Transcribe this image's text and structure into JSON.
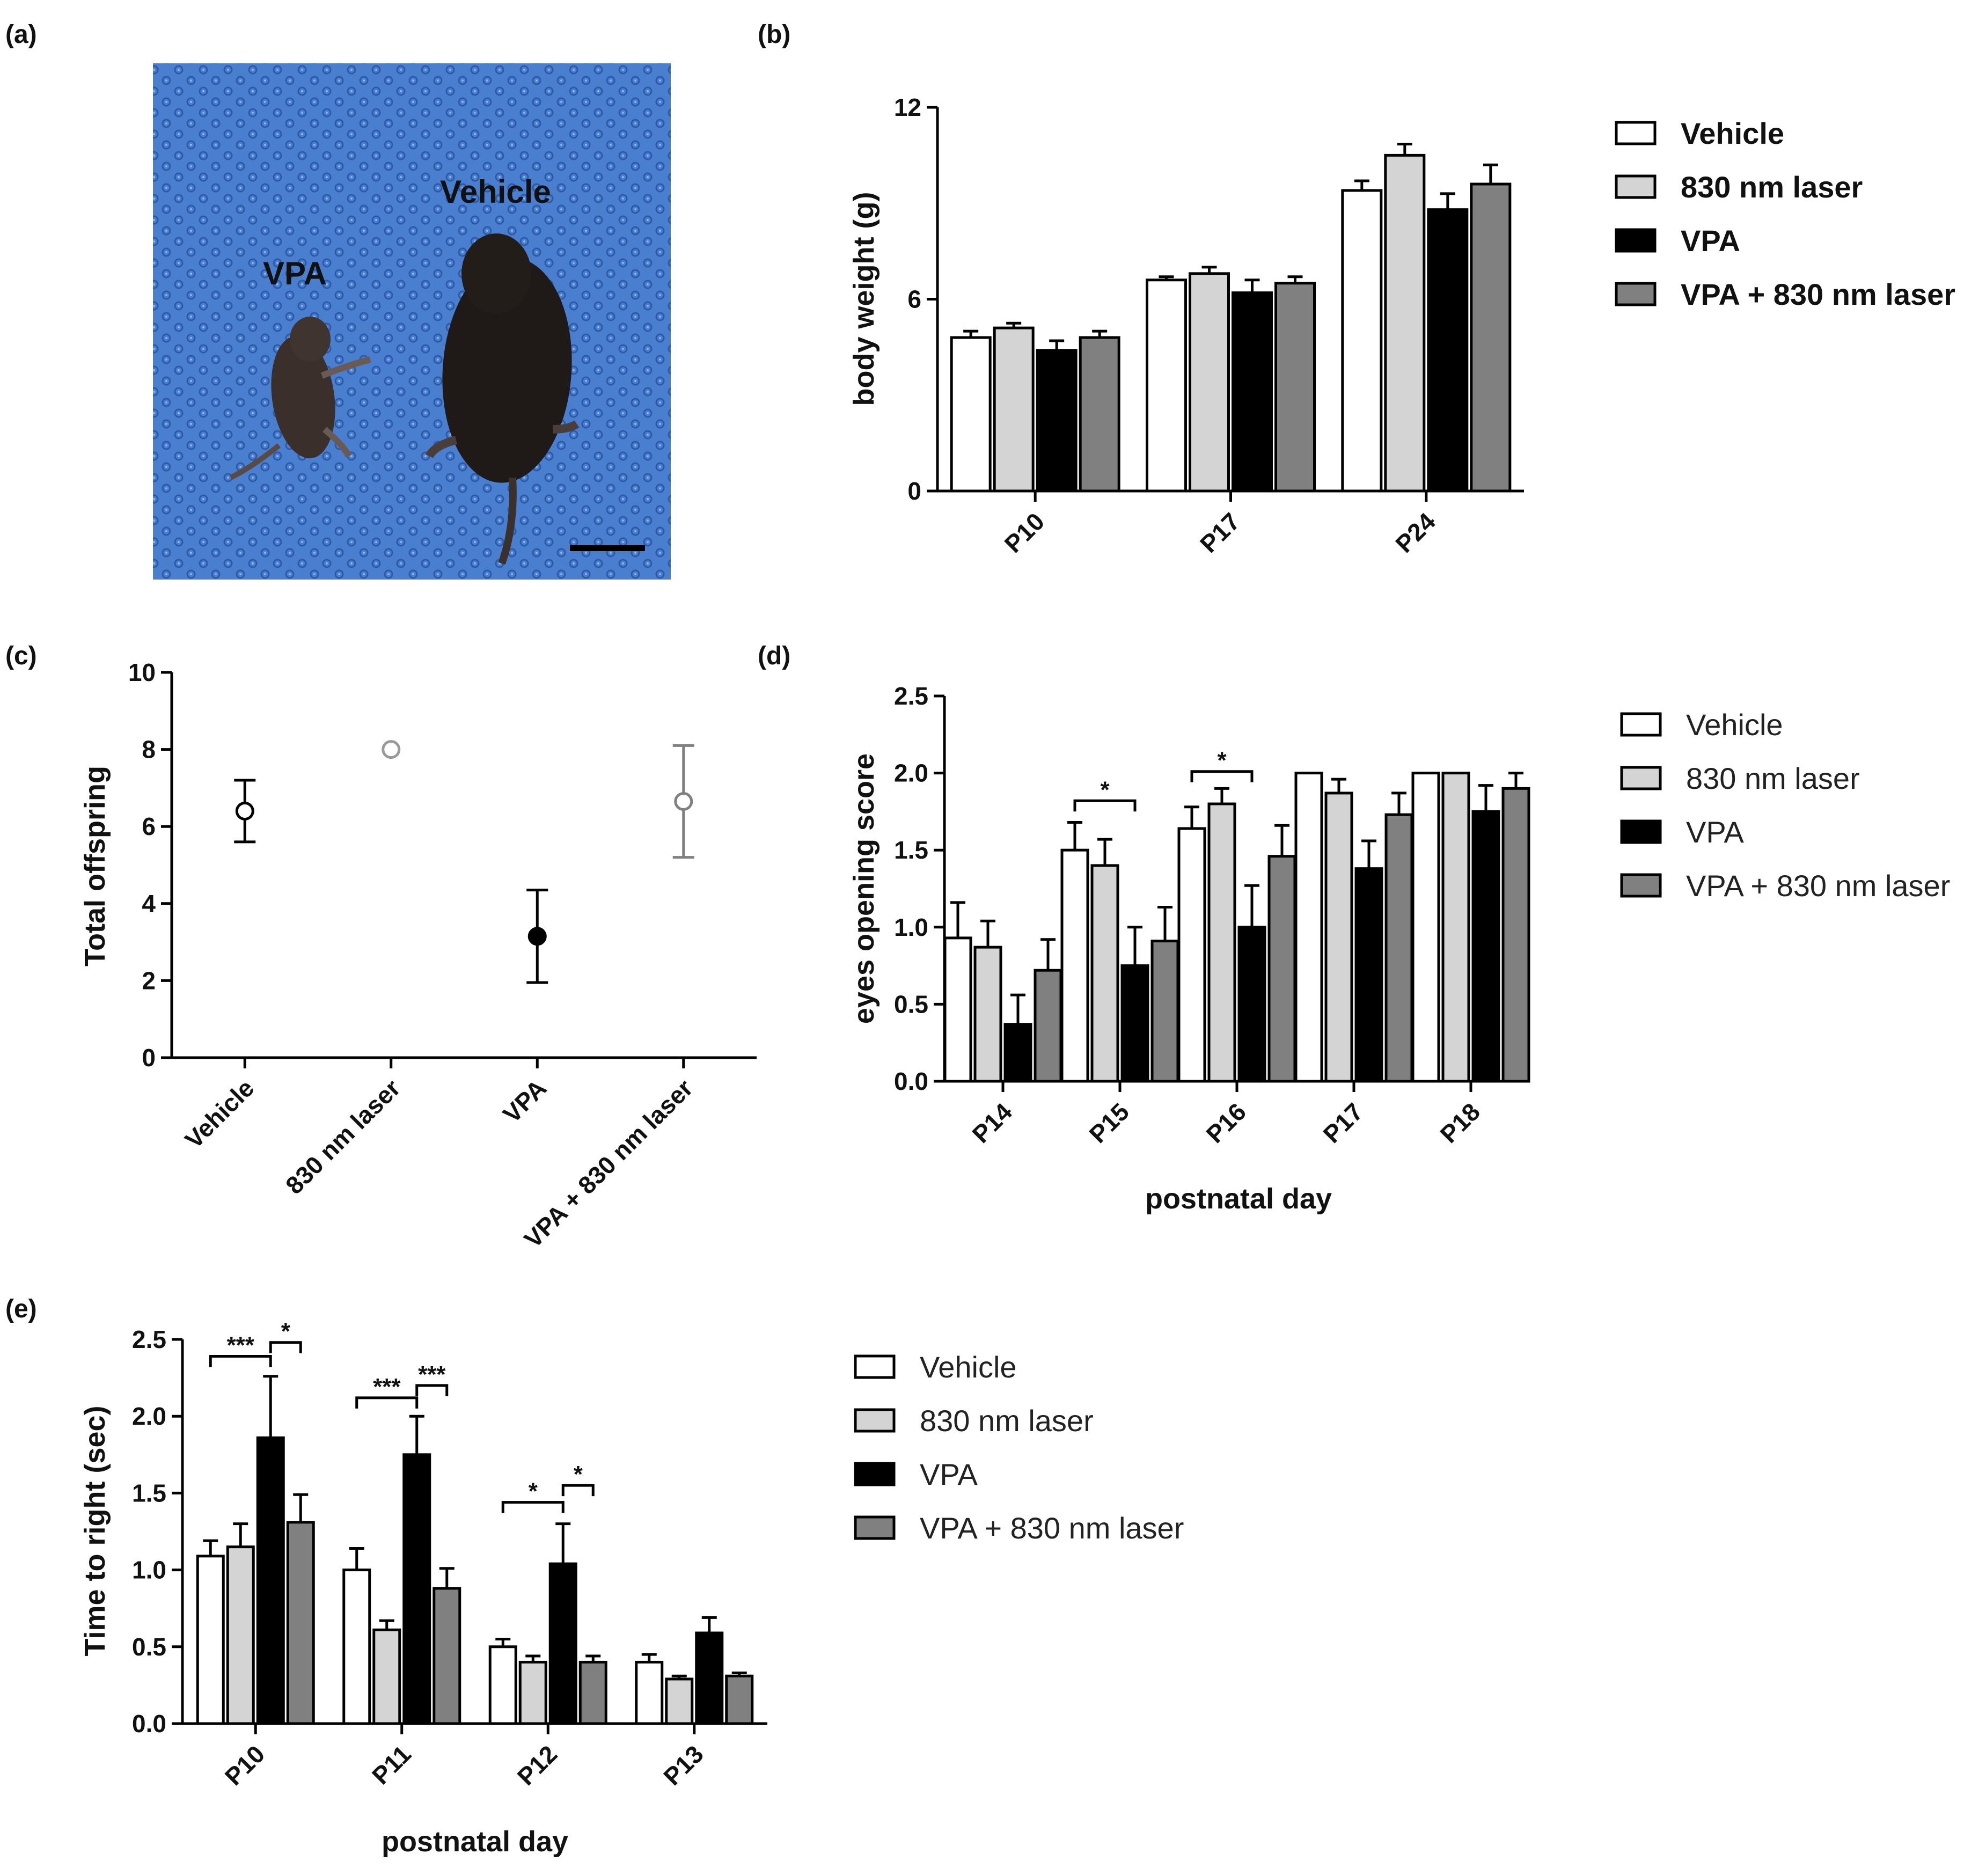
{
  "panels": {
    "a": "(a)",
    "b": "(b)",
    "c": "(c)",
    "d": "(d)",
    "e": "(e)"
  },
  "photo": {
    "label_left": "VPA",
    "label_right": "Vehicle"
  },
  "colors": {
    "Vehicle": "#ffffff",
    "830 nm laser": "#d4d4d4",
    "VPA": "#000000",
    "VPA + 830 nm laser": "#808080"
  },
  "chart_data": [
    {
      "id": "b",
      "type": "bar",
      "title": "",
      "xlabel": "",
      "ylabel": "body weight (g)",
      "ylim": [
        0,
        12
      ],
      "yticks": [
        "0",
        "6",
        "12"
      ],
      "categories": [
        "P10",
        "P17",
        "P24"
      ],
      "series": [
        {
          "name": "Vehicle",
          "values": [
            4.8,
            6.6,
            9.4
          ],
          "errors": [
            0.2,
            0.1,
            0.3
          ]
        },
        {
          "name": "830 nm laser",
          "values": [
            5.1,
            6.8,
            10.5
          ],
          "errors": [
            0.15,
            0.2,
            0.35
          ]
        },
        {
          "name": "VPA",
          "values": [
            4.4,
            6.2,
            8.8
          ],
          "errors": [
            0.3,
            0.4,
            0.5
          ]
        },
        {
          "name": "VPA + 830 nm laser",
          "values": [
            4.8,
            6.5,
            9.6
          ],
          "errors": [
            0.2,
            0.2,
            0.6
          ]
        }
      ]
    },
    {
      "id": "c",
      "type": "scatter",
      "title": "",
      "xlabel": "",
      "ylabel": "Total offspring",
      "ylim": [
        0,
        10
      ],
      "yticks": [
        "0",
        "2",
        "4",
        "6",
        "8",
        "10"
      ],
      "categories": [
        "Vehicle",
        "830 nm laser",
        "VPA",
        "VPA + 830 nm laser"
      ],
      "values": [
        6.4,
        8.0,
        3.15,
        6.65
      ],
      "errors": [
        0.8,
        0,
        1.2,
        1.45
      ]
    },
    {
      "id": "d",
      "type": "bar",
      "title": "",
      "xlabel": "postnatal day",
      "ylabel": "eyes opening score",
      "ylim": [
        0,
        2.5
      ],
      "yticks": [
        "0.0",
        "0.5",
        "1.0",
        "1.5",
        "2.0",
        "2.5"
      ],
      "categories": [
        "P14",
        "P15",
        "P16",
        "P17",
        "P18"
      ],
      "series": [
        {
          "name": "Vehicle",
          "values": [
            0.93,
            1.5,
            1.64,
            2.0,
            2.0
          ],
          "errors": [
            0.23,
            0.18,
            0.14,
            0,
            0
          ]
        },
        {
          "name": "830 nm laser",
          "values": [
            0.87,
            1.4,
            1.8,
            1.87,
            2.0
          ],
          "errors": [
            0.17,
            0.17,
            0.1,
            0.09,
            0
          ]
        },
        {
          "name": "VPA",
          "values": [
            0.37,
            0.75,
            1.0,
            1.38,
            1.75
          ],
          "errors": [
            0.19,
            0.25,
            0.27,
            0.18,
            0.17
          ]
        },
        {
          "name": "VPA + 830 nm laser",
          "values": [
            0.72,
            0.91,
            1.46,
            1.73,
            1.9
          ],
          "errors": [
            0.2,
            0.22,
            0.2,
            0.14,
            0.1
          ]
        }
      ],
      "annotations": [
        {
          "text": "*",
          "category": "P15",
          "from": 0,
          "to": 2,
          "y": 1.82
        },
        {
          "text": "*",
          "category": "P16",
          "from": 0,
          "to": 2,
          "y": 2.01
        }
      ]
    },
    {
      "id": "e",
      "type": "bar",
      "title": "",
      "xlabel": "postnatal day",
      "ylabel": "Time to right (sec)",
      "ylim": [
        0,
        2.5
      ],
      "yticks": [
        "0.0",
        "0.5",
        "1.0",
        "1.5",
        "2.0",
        "2.5"
      ],
      "categories": [
        "P10",
        "P11",
        "P12",
        "P13"
      ],
      "series": [
        {
          "name": "Vehicle",
          "values": [
            1.09,
            1.0,
            0.5,
            0.4
          ],
          "errors": [
            0.1,
            0.14,
            0.05,
            0.05
          ]
        },
        {
          "name": "830 nm laser",
          "values": [
            1.15,
            0.61,
            0.4,
            0.29
          ],
          "errors": [
            0.15,
            0.06,
            0.04,
            0.02
          ]
        },
        {
          "name": "VPA",
          "values": [
            1.86,
            1.75,
            1.04,
            0.59
          ],
          "errors": [
            0.4,
            0.25,
            0.26,
            0.1
          ]
        },
        {
          "name": "VPA + 830 nm laser",
          "values": [
            1.31,
            0.88,
            0.4,
            0.31
          ],
          "errors": [
            0.18,
            0.13,
            0.04,
            0.02
          ]
        }
      ],
      "annotations": [
        {
          "text": "***",
          "category": "P10",
          "from": 0,
          "to": 2,
          "y": 2.39
        },
        {
          "text": "*",
          "category": "P10",
          "from": 2,
          "to": 3,
          "y": 2.48
        },
        {
          "text": "***",
          "category": "P11",
          "from": 0,
          "to": 2,
          "y": 2.12
        },
        {
          "text": "***",
          "category": "P11",
          "from": 2,
          "to": 3,
          "y": 2.2
        },
        {
          "text": "*",
          "category": "P12",
          "from": 0,
          "to": 2,
          "y": 1.44
        },
        {
          "text": "*",
          "category": "P12",
          "from": 2,
          "to": 3,
          "y": 1.55
        }
      ]
    }
  ]
}
